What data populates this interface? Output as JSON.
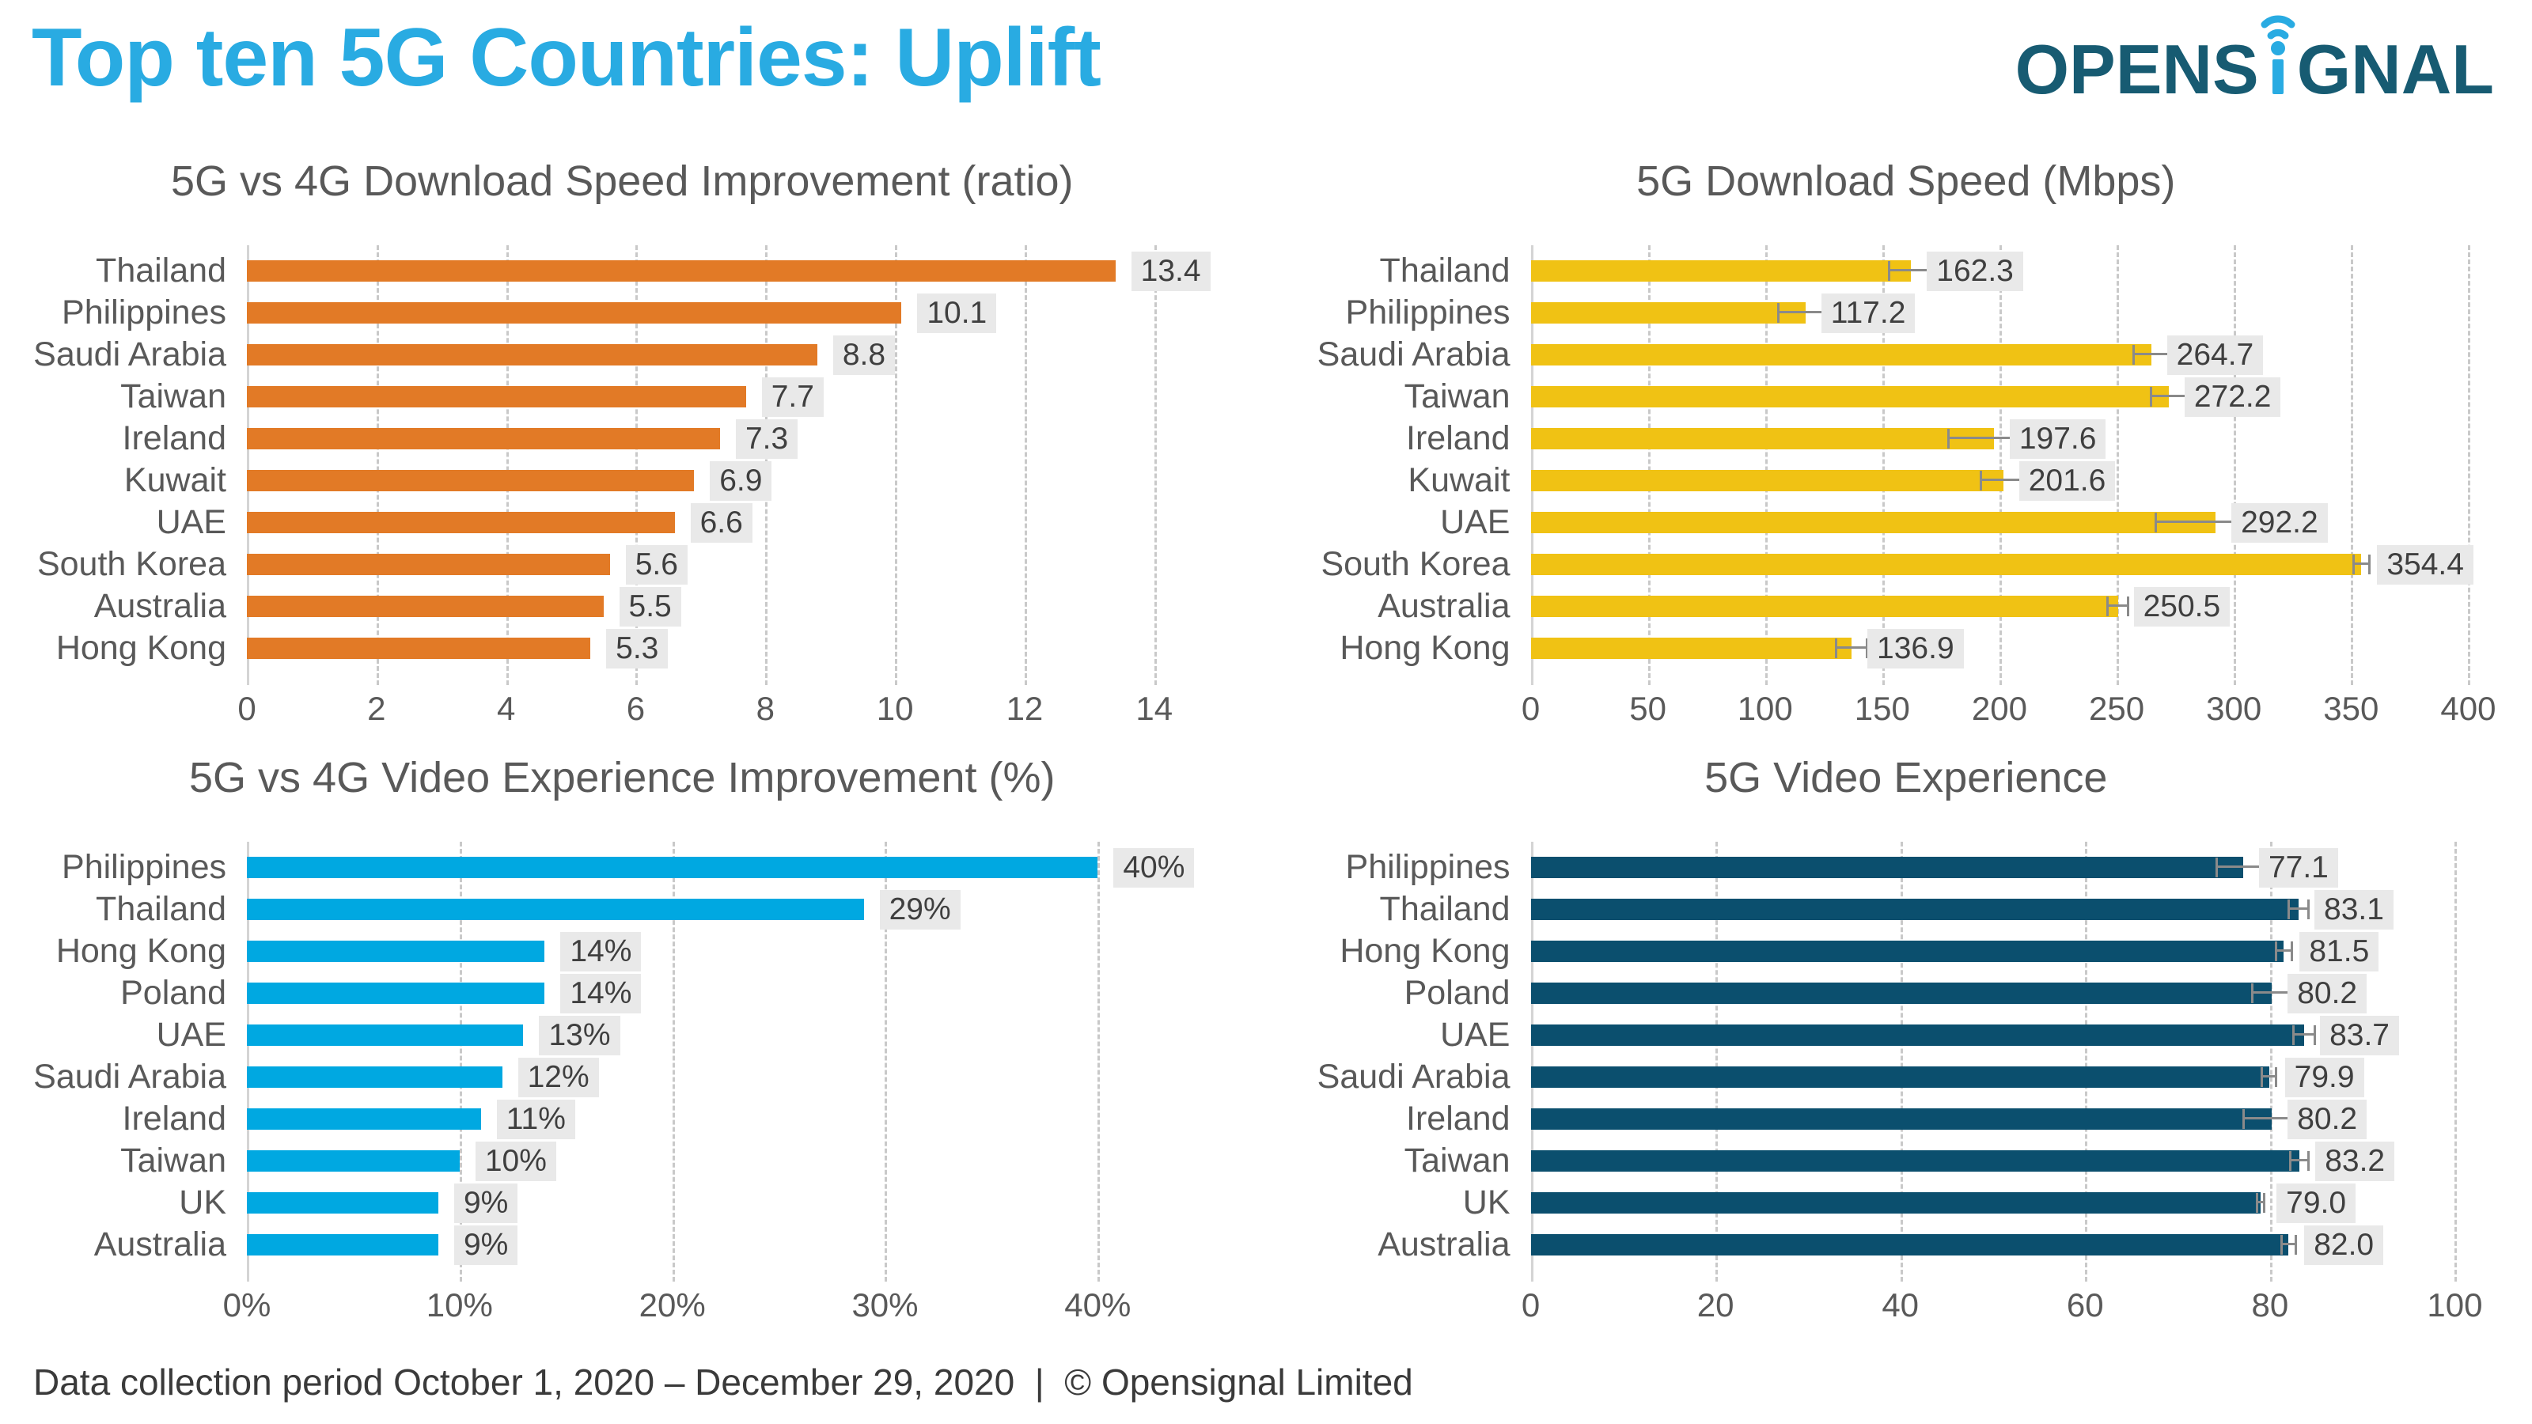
{
  "header": {
    "title": "Top ten 5G Countries: Uplift",
    "logo": {
      "left": "OPENS",
      "right": "GNAL"
    }
  },
  "footer": {
    "text": "Data collection period October 1, 2020 – December 29, 2020  |  © Opensignal Limited"
  },
  "colors": {
    "accent_blue": "#29ABE2",
    "logo_navy": "#175B72",
    "orange": "#E27A26",
    "yellow": "#F0C214",
    "light_blue": "#00A8E1",
    "navy": "#0B4F6E",
    "label_gray": "#595959",
    "value_text": "#3F3F3F",
    "value_bg": "#E9E9E9",
    "gridline": "#C9C9C9",
    "error_bar": "#8A8A8A"
  },
  "chart_data": [
    {
      "type": "bar",
      "orientation": "horizontal",
      "title": "5G vs 4G Download Speed Improvement (ratio)",
      "bar_color": "#E27A26",
      "grid": true,
      "legend": false,
      "categories": [
        "Thailand",
        "Philippines",
        "Saudi Arabia",
        "Taiwan",
        "Ireland",
        "Kuwait",
        "UAE",
        "South Korea",
        "Australia",
        "Hong Kong"
      ],
      "values": [
        13.4,
        10.1,
        8.8,
        7.7,
        7.3,
        6.9,
        6.6,
        5.6,
        5.5,
        5.3
      ],
      "labels": [
        "13.4",
        "10.1",
        "8.8",
        "7.7",
        "7.3",
        "6.9",
        "6.6",
        "5.6",
        "5.5",
        "5.3"
      ],
      "errors": null,
      "axis_max": 14.9,
      "ticks": [
        0,
        2,
        4,
        6,
        8,
        10,
        12,
        14
      ],
      "tick_labels": [
        "0",
        "2",
        "4",
        "6",
        "8",
        "10",
        "12",
        "14"
      ]
    },
    {
      "type": "bar",
      "orientation": "horizontal",
      "title": "5G Download Speed (Mbps)",
      "bar_color": "#F0C214",
      "grid": true,
      "legend": false,
      "categories": [
        "Thailand",
        "Philippines",
        "Saudi Arabia",
        "Taiwan",
        "Ireland",
        "Kuwait",
        "UAE",
        "South Korea",
        "Australia",
        "Hong Kong"
      ],
      "values": [
        162.3,
        117.2,
        264.7,
        272.2,
        197.6,
        201.6,
        292.2,
        354.4,
        250.5,
        136.9
      ],
      "labels": [
        "162.3",
        "117.2",
        "264.7",
        "272.2",
        "197.6",
        "201.6",
        "292.2",
        "354.4",
        "250.5",
        "136.9"
      ],
      "errors": [
        10,
        12,
        8,
        8,
        20,
        10,
        26,
        4,
        5,
        7
      ],
      "axis_max": 412,
      "ticks": [
        0,
        50,
        100,
        150,
        200,
        250,
        300,
        350,
        400
      ],
      "tick_labels": [
        "0",
        "50",
        "100",
        "150",
        "200",
        "250",
        "300",
        "350",
        "400"
      ]
    },
    {
      "type": "bar",
      "orientation": "horizontal",
      "title": "5G vs 4G Video Experience Improvement (%)",
      "bar_color": "#00A8E1",
      "grid": true,
      "legend": false,
      "categories": [
        "Philippines",
        "Thailand",
        "Hong Kong",
        "Poland",
        "UAE",
        "Saudi Arabia",
        "Ireland",
        "Taiwan",
        "UK",
        "Australia"
      ],
      "values": [
        40,
        29,
        14,
        14,
        13,
        12,
        11,
        10,
        9,
        9
      ],
      "labels": [
        "40%",
        "29%",
        "14%",
        "14%",
        "13%",
        "12%",
        "11%",
        "10%",
        "9%",
        "9%"
      ],
      "errors": null,
      "axis_max": 45.4,
      "ticks": [
        0,
        10,
        20,
        30,
        40
      ],
      "tick_labels": [
        "0%",
        "10%",
        "20%",
        "30%",
        "40%"
      ]
    },
    {
      "type": "bar",
      "orientation": "horizontal",
      "title": "5G Video Experience",
      "bar_color": "#0B4F6E",
      "grid": true,
      "legend": false,
      "categories": [
        "Philippines",
        "Thailand",
        "Hong Kong",
        "Poland",
        "UAE",
        "Saudi Arabia",
        "Ireland",
        "Taiwan",
        "UK",
        "Australia"
      ],
      "values": [
        77.1,
        83.1,
        81.5,
        80.2,
        83.7,
        79.9,
        80.2,
        83.2,
        79.0,
        82.0
      ],
      "labels": [
        "77.1",
        "83.1",
        "81.5",
        "80.2",
        "83.7",
        "79.9",
        "80.2",
        "83.2",
        "79.0",
        "82.0"
      ],
      "errors": [
        3.0,
        1.2,
        1.0,
        2.2,
        1.3,
        0.9,
        3.2,
        1.1,
        0.5,
        0.9
      ],
      "axis_max": 104.5,
      "ticks": [
        0,
        20,
        40,
        60,
        80,
        100
      ],
      "tick_labels": [
        "0",
        "20",
        "40",
        "60",
        "80",
        "100"
      ]
    }
  ]
}
